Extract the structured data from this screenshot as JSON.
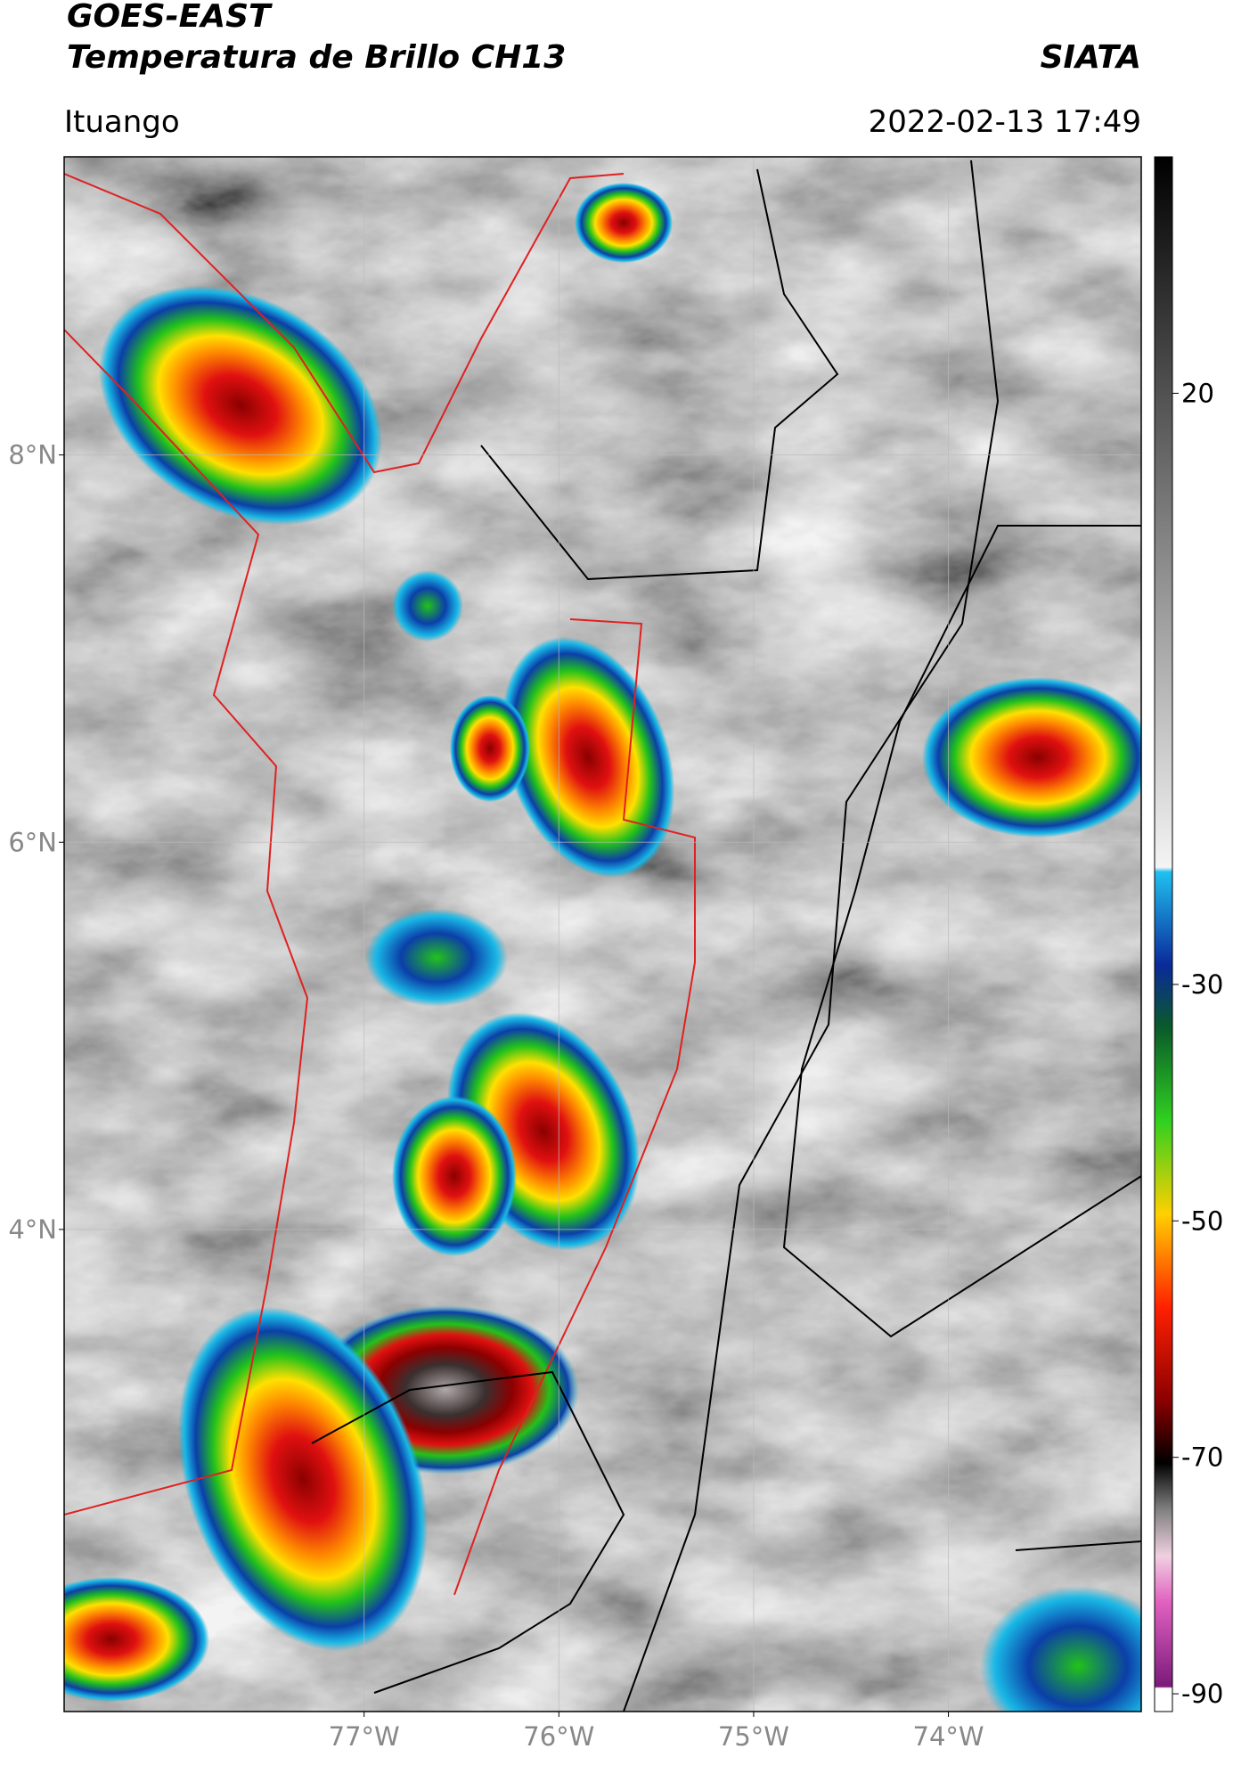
{
  "header": {
    "title": "GOES-EAST",
    "subtitle": "Temperatura de Brillo CH13",
    "source": "SIATA",
    "location": "Ituango",
    "timestamp": "2022-02-13 17:49"
  },
  "map": {
    "xlim": [
      -78.54,
      -73.01
    ],
    "ylim": [
      1.51,
      9.54
    ],
    "xticks": [
      {
        "value": -77,
        "label": "77°W"
      },
      {
        "value": -76,
        "label": "76°W"
      },
      {
        "value": -75,
        "label": "75°W"
      },
      {
        "value": -74,
        "label": "74°W"
      }
    ],
    "yticks": [
      {
        "value": 4,
        "label": "4°N"
      },
      {
        "value": 6,
        "label": "6°N"
      },
      {
        "value": 8,
        "label": "8°N"
      }
    ],
    "grid": true
  },
  "colorbar": {
    "lim": [
      -91.5,
      40
    ],
    "ticks": [
      20,
      -30,
      -50,
      -70,
      -90
    ]
  }
}
